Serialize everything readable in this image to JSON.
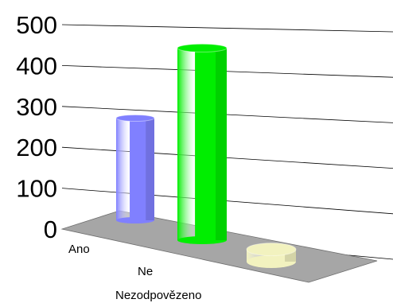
{
  "chart_data": {
    "type": "bar",
    "style": "3d-cylinder",
    "categories": [
      "Ano",
      "Ne",
      "Nezodpovězeno"
    ],
    "values": [
      250,
      470,
      30
    ],
    "ylim": [
      0,
      500
    ],
    "yticks": [
      0,
      100,
      200,
      300,
      400,
      500
    ],
    "grid": true,
    "legend": "none",
    "colors": [
      "#8080ff",
      "#00ee00",
      "#f2f2bf"
    ],
    "floor_color": "#a6a6a6"
  }
}
